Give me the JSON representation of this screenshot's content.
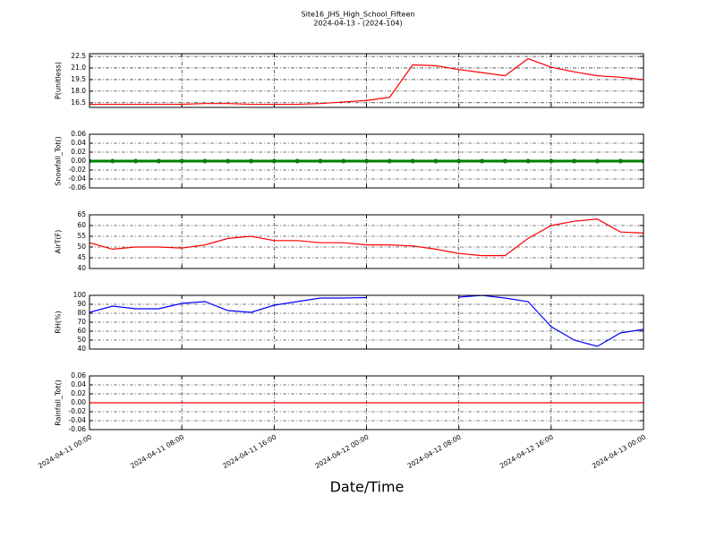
{
  "chart_data": [
    {
      "type": "line",
      "title": "Site16_JHS_High_School_Fifteen",
      "subtitle": "2024-04-13 - (2024-104)",
      "ylabel": "P(unitless)",
      "color": "#ff0000",
      "markers": false,
      "grid": true,
      "x": [
        "2024-04-11 00:00",
        "2024-04-11 02:00",
        "2024-04-11 04:00",
        "2024-04-11 06:00",
        "2024-04-11 08:00",
        "2024-04-11 10:00",
        "2024-04-11 12:00",
        "2024-04-11 14:00",
        "2024-04-11 16:00",
        "2024-04-11 18:00",
        "2024-04-11 20:00",
        "2024-04-11 22:00",
        "2024-04-12 00:00",
        "2024-04-12 02:00",
        "2024-04-12 04:00",
        "2024-04-12 06:00",
        "2024-04-12 08:00",
        "2024-04-12 10:00",
        "2024-04-12 12:00",
        "2024-04-12 14:00",
        "2024-04-12 16:00",
        "2024-04-12 18:00",
        "2024-04-12 20:00",
        "2024-04-12 22:00",
        "2024-04-13 00:00"
      ],
      "values": [
        16.3,
        16.3,
        16.3,
        16.3,
        16.3,
        16.4,
        16.4,
        16.3,
        16.3,
        16.3,
        16.4,
        16.6,
        16.8,
        17.2,
        21.4,
        21.3,
        20.8,
        20.4,
        20.0,
        22.2,
        21.1,
        20.5,
        20.0,
        19.8,
        19.5
      ],
      "xlim": [
        "2024-04-11 00:00",
        "2024-04-13 00:00"
      ],
      "ylim": [
        15.9,
        22.85
      ],
      "yticks": [
        16.5,
        {
          "value": 18,
          "label": "18.0"
        },
        19.5,
        {
          "value": 21,
          "label": "21.0"
        },
        22.5
      ]
    },
    {
      "type": "line",
      "ylabel": "Snowfall_Tot()",
      "color": "#008000",
      "markers": true,
      "grid": true,
      "x": [
        "2024-04-11 00:00",
        "2024-04-11 02:00",
        "2024-04-11 04:00",
        "2024-04-11 06:00",
        "2024-04-11 08:00",
        "2024-04-11 10:00",
        "2024-04-11 12:00",
        "2024-04-11 14:00",
        "2024-04-11 16:00",
        "2024-04-11 18:00",
        "2024-04-11 20:00",
        "2024-04-11 22:00",
        "2024-04-12 00:00",
        "2024-04-12 02:00",
        "2024-04-12 04:00",
        "2024-04-12 06:00",
        "2024-04-12 08:00",
        "2024-04-12 10:00",
        "2024-04-12 12:00",
        "2024-04-12 14:00",
        "2024-04-12 16:00",
        "2024-04-12 18:00",
        "2024-04-12 20:00",
        "2024-04-12 22:00",
        "2024-04-13 00:00"
      ],
      "values": [
        0,
        0,
        0,
        0,
        0,
        0,
        0,
        0,
        0,
        0,
        0,
        0,
        0,
        0,
        0,
        0,
        0,
        0,
        0,
        0,
        0,
        0,
        0,
        0,
        0
      ],
      "xlim": [
        "2024-04-11 00:00",
        "2024-04-13 00:00"
      ],
      "ylim": [
        -0.06,
        0.06
      ],
      "yticks": [
        -0.06,
        -0.04,
        -0.02,
        {
          "value": 0,
          "label": "0.00"
        },
        0.02,
        0.04,
        0.06
      ]
    },
    {
      "type": "line",
      "ylabel": "AirT(F)",
      "color": "#ff0000",
      "markers": false,
      "grid": true,
      "x": [
        "2024-04-11 00:00",
        "2024-04-11 02:00",
        "2024-04-11 04:00",
        "2024-04-11 06:00",
        "2024-04-11 08:00",
        "2024-04-11 10:00",
        "2024-04-11 12:00",
        "2024-04-11 14:00",
        "2024-04-11 16:00",
        "2024-04-11 18:00",
        "2024-04-11 20:00",
        "2024-04-11 22:00",
        "2024-04-12 00:00",
        "2024-04-12 02:00",
        "2024-04-12 04:00",
        "2024-04-12 06:00",
        "2024-04-12 08:00",
        "2024-04-12 10:00",
        "2024-04-12 12:00",
        "2024-04-12 14:00",
        "2024-04-12 16:00",
        "2024-04-12 18:00",
        "2024-04-12 20:00",
        "2024-04-12 22:00",
        "2024-04-13 00:00"
      ],
      "values": [
        52,
        49,
        50,
        50,
        49.5,
        51,
        54,
        55,
        53,
        53,
        52,
        52,
        51,
        51,
        50.5,
        49,
        47,
        46,
        46,
        54,
        60,
        62,
        63,
        57,
        56.5
      ],
      "xlim": [
        "2024-04-11 00:00",
        "2024-04-13 00:00"
      ],
      "ylim": [
        40,
        65
      ],
      "yticks": [
        40,
        45,
        50,
        55,
        60,
        65
      ]
    },
    {
      "type": "line",
      "ylabel": "RH(%)",
      "color": "#0000ff",
      "markers": false,
      "grid": true,
      "x": [
        "2024-04-11 00:00",
        "2024-04-11 02:00",
        "2024-04-11 04:00",
        "2024-04-11 06:00",
        "2024-04-11 08:00",
        "2024-04-11 10:00",
        "2024-04-11 12:00",
        "2024-04-11 14:00",
        "2024-04-11 16:00",
        "2024-04-11 18:00",
        "2024-04-11 20:00",
        "2024-04-11 22:00",
        "2024-04-12 00:00",
        "2024-04-12 02:00",
        "2024-04-12 04:00",
        "2024-04-12 06:00",
        "2024-04-12 08:00",
        "2024-04-12 10:00",
        "2024-04-12 12:00",
        "2024-04-12 14:00",
        "2024-04-12 16:00",
        "2024-04-12 18:00",
        "2024-04-12 20:00",
        "2024-04-12 22:00",
        "2024-04-13 00:00"
      ],
      "values": [
        81,
        88,
        85,
        85,
        91,
        93,
        83,
        81,
        89,
        93,
        97,
        97,
        97.5,
        null,
        null,
        null,
        98,
        100,
        97,
        93,
        65,
        50,
        43,
        58,
        62
      ],
      "xlim": [
        "2024-04-11 00:00",
        "2024-04-13 00:00"
      ],
      "ylim": [
        40,
        100
      ],
      "yticks": [
        40,
        50,
        60,
        70,
        80,
        90,
        100
      ]
    },
    {
      "type": "line",
      "ylabel": "Rainfall_Tot()",
      "xlabel": "Date/Time",
      "color": "#ff0000",
      "markers": false,
      "grid": true,
      "x": [
        "2024-04-11 00:00",
        "2024-04-11 02:00",
        "2024-04-11 04:00",
        "2024-04-11 06:00",
        "2024-04-11 08:00",
        "2024-04-11 10:00",
        "2024-04-11 12:00",
        "2024-04-11 14:00",
        "2024-04-11 16:00",
        "2024-04-11 18:00",
        "2024-04-11 20:00",
        "2024-04-11 22:00",
        "2024-04-12 00:00",
        "2024-04-12 02:00",
        "2024-04-12 04:00",
        "2024-04-12 06:00",
        "2024-04-12 08:00",
        "2024-04-12 10:00",
        "2024-04-12 12:00",
        "2024-04-12 14:00",
        "2024-04-12 16:00",
        "2024-04-12 18:00",
        "2024-04-12 20:00",
        "2024-04-12 22:00",
        "2024-04-13 00:00"
      ],
      "values": [
        0,
        0,
        0,
        0,
        0,
        0,
        0,
        0,
        0,
        0,
        0,
        0,
        0,
        0,
        0,
        0,
        0,
        0,
        0,
        0,
        0,
        0,
        0,
        0,
        0
      ],
      "xlim": [
        "2024-04-11 00:00",
        "2024-04-13 00:00"
      ],
      "ylim": [
        -0.06,
        0.06
      ],
      "yticks": [
        -0.06,
        -0.04,
        -0.02,
        {
          "value": 0,
          "label": "0.00"
        },
        0.02,
        0.04,
        0.06
      ],
      "xticks": [
        "2024-04-11 00:00",
        "2024-04-11 08:00",
        "2024-04-11 16:00",
        "2024-04-12 00:00",
        "2024-04-12 08:00",
        "2024-04-12 16:00",
        "2024-04-13 00:00"
      ]
    }
  ]
}
